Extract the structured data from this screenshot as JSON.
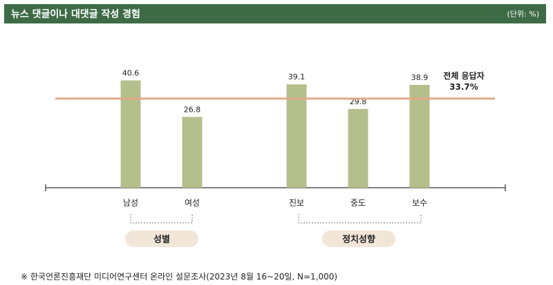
{
  "header": {
    "title": "뉴스 댓글이나 대댓글 작성 경험",
    "unit": "(단위: %)"
  },
  "colors": {
    "header_bg": "#3d6b45",
    "bar": "#b5bf8c",
    "reference_line": "#e0aa86",
    "group_pill": "#f2e6d8"
  },
  "chart_data": {
    "type": "bar",
    "categories": [
      "남성",
      "여성",
      "진보",
      "중도",
      "보수"
    ],
    "values": [
      40.6,
      26.8,
      39.1,
      29.8,
      38.9
    ],
    "value_labels": [
      "40.6",
      "26.8",
      "39.1",
      "29.8",
      "38.9"
    ],
    "groups": [
      {
        "label": "성별",
        "categories": [
          "남성",
          "여성"
        ]
      },
      {
        "label": "정치성향",
        "categories": [
          "진보",
          "중도",
          "보수"
        ]
      }
    ],
    "reference": {
      "label_line1": "전체 응답자",
      "label_line2": "33.7%",
      "value": 33.7
    },
    "ylim": [
      0,
      50
    ]
  },
  "footnote": "※ 한국언론진흥재단 미디어연구센터 온라인 설문조사(2023년 8월 16~20일, N=1,000)"
}
